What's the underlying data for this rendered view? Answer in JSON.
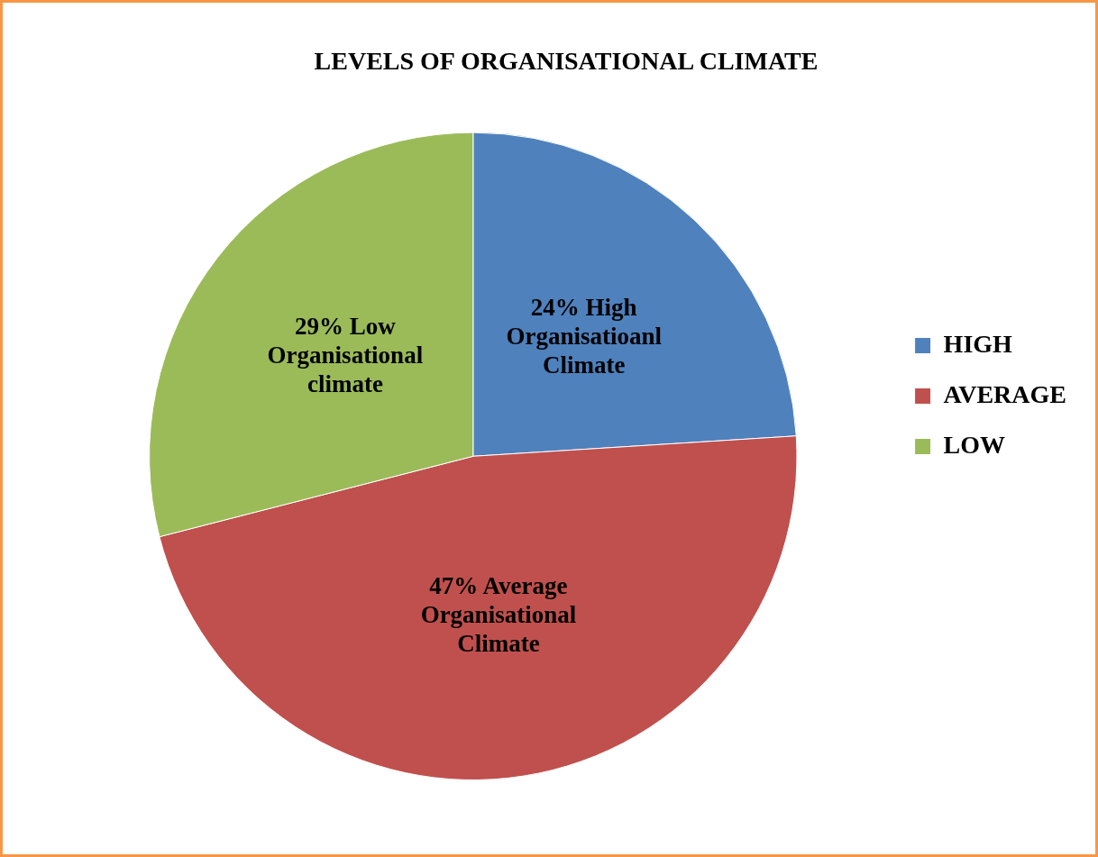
{
  "chart_data": {
    "type": "pie",
    "title": "LEVELS OF ORGANISATIONAL CLIMATE",
    "categories": [
      "HIGH",
      "AVERAGE",
      "LOW"
    ],
    "values": [
      24,
      47,
      29
    ],
    "colors": [
      "#4f81bd",
      "#c0504d",
      "#9bbb59"
    ],
    "value_labels": [
      "24% High Organisatioanl Climate",
      "47% Average Organisational Climate",
      "29% Low Organisational climate"
    ],
    "legend": "right"
  }
}
